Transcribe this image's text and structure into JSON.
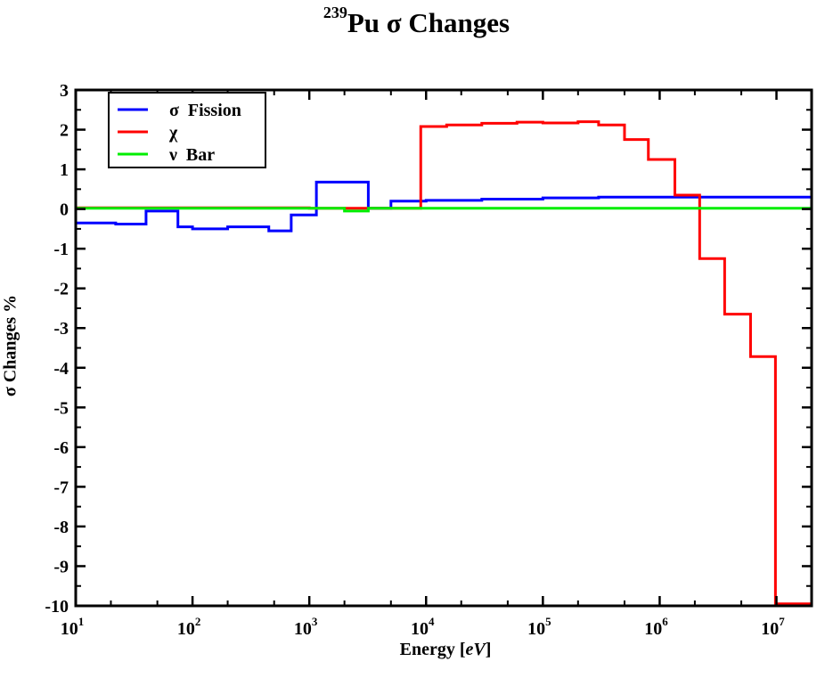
{
  "title": {
    "superscript": "239",
    "text": "Pu σ  Changes"
  },
  "chart_data": {
    "type": "line",
    "step": true,
    "xscale": "log",
    "xlim": [
      10,
      20000000
    ],
    "ylim": [
      -10,
      3
    ],
    "xlabel": "Energy [eV]",
    "xlabel_main": "Energy [",
    "xlabel_unit": "eV",
    "xlabel_end": "]",
    "ylabel": "σ Changes %",
    "legend_position": "top-left",
    "grid": false,
    "x_ticks": [
      {
        "base": "10",
        "exp": "1",
        "value": 10
      },
      {
        "base": "10",
        "exp": "2",
        "value": 100
      },
      {
        "base": "10",
        "exp": "3",
        "value": 1000
      },
      {
        "base": "10",
        "exp": "4",
        "value": 10000
      },
      {
        "base": "10",
        "exp": "5",
        "value": 100000
      },
      {
        "base": "10",
        "exp": "6",
        "value": 1000000
      },
      {
        "base": "10",
        "exp": "7",
        "value": 10000000
      }
    ],
    "y_ticks": [
      3,
      2,
      1,
      0,
      -1,
      -2,
      -3,
      -4,
      -5,
      -6,
      -7,
      -8,
      -9,
      -10
    ],
    "series": [
      {
        "name": "σ  Fission",
        "color": "#0000ff",
        "x": [
          10,
          22,
          40,
          75,
          100,
          200,
          450,
          700,
          1150,
          3200,
          5000,
          10000,
          30000,
          100000,
          300000,
          1000000,
          3000000,
          10000000,
          20000000
        ],
        "y": [
          -0.35,
          -0.38,
          -0.05,
          -0.45,
          -0.5,
          -0.45,
          -0.55,
          -0.15,
          0.68,
          0.02,
          0.2,
          0.22,
          0.25,
          0.28,
          0.3,
          0.3,
          0.3,
          0.3,
          0.3
        ]
      },
      {
        "name": "χ",
        "color": "#ff0000",
        "x": [
          10,
          1000,
          9000,
          15000,
          30000,
          60000,
          100000,
          200000,
          300000,
          500000,
          800000,
          1350000,
          2200000,
          3600000,
          6000000,
          9800000,
          20000000
        ],
        "y": [
          0.03,
          0.02,
          2.08,
          2.12,
          2.16,
          2.19,
          2.17,
          2.2,
          2.12,
          1.75,
          1.25,
          0.35,
          -1.25,
          -2.65,
          -3.72,
          -9.95,
          -9.95
        ]
      },
      {
        "name": "ν  Bar",
        "color": "#00ee00",
        "x": [
          10,
          2000,
          3200,
          20000000
        ],
        "y": [
          0.02,
          -0.05,
          0.02,
          0.02
        ]
      }
    ]
  }
}
